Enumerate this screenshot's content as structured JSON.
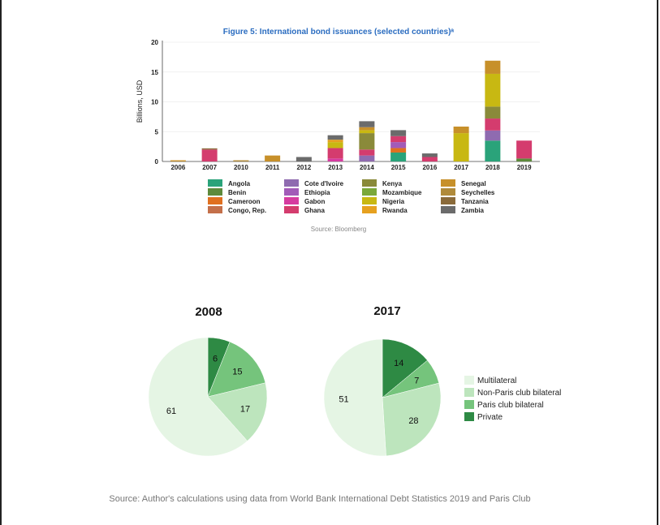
{
  "chart_data": [
    {
      "type": "bar",
      "stacked": true,
      "title": "Figure 5: International bond issuances (selected countries)ᵃ",
      "xlabel": "",
      "ylabel": "Billions, USD",
      "ylim": [
        0,
        20
      ],
      "yticks": [
        "0",
        "5",
        "10",
        "15",
        "20"
      ],
      "categories": [
        "2006",
        "2007",
        "2010",
        "2011",
        "2012",
        "2013",
        "2014",
        "2015",
        "2016",
        "2017",
        "2018",
        "2019"
      ],
      "series": [
        {
          "name": "Angola",
          "color": "#2aa37a",
          "values": [
            0,
            0,
            0,
            0,
            0,
            0,
            0,
            1.5,
            0,
            0,
            3.5,
            0
          ]
        },
        {
          "name": "Benin",
          "color": "#5d8a3c",
          "values": [
            0,
            0,
            0,
            0,
            0,
            0,
            0,
            0,
            0,
            0,
            0,
            0.5
          ]
        },
        {
          "name": "Cameroon",
          "color": "#e07020",
          "values": [
            0,
            0,
            0,
            0,
            0,
            0,
            0,
            0.75,
            0,
            0,
            0,
            0
          ]
        },
        {
          "name": "Congo, Rep.",
          "color": "#c4704a",
          "values": [
            0,
            0,
            0,
            0,
            0,
            0,
            0,
            0,
            0,
            0,
            0,
            0
          ]
        },
        {
          "name": "Cote d'Ivoire",
          "color": "#8f6bb0",
          "values": [
            0,
            0,
            0,
            0,
            0,
            0,
            1.0,
            0,
            0,
            0,
            1.7,
            0
          ]
        },
        {
          "name": "Ethiopia",
          "color": "#a25bb8",
          "values": [
            0,
            0,
            0,
            0,
            0,
            0,
            0,
            1.0,
            0,
            0,
            0,
            0
          ]
        },
        {
          "name": "Gabon",
          "color": "#d63ba0",
          "values": [
            0,
            0,
            0,
            0,
            0,
            0.5,
            0,
            0,
            0,
            0,
            0,
            0
          ]
        },
        {
          "name": "Ghana",
          "color": "#d43c6e",
          "values": [
            0,
            2.0,
            0,
            0,
            0,
            1.75,
            1.0,
            1.0,
            0.75,
            0,
            2.0,
            3.0
          ]
        },
        {
          "name": "Kenya",
          "color": "#8a8a3a",
          "values": [
            0,
            0,
            0,
            0,
            0,
            0,
            2.75,
            0,
            0,
            0,
            2.0,
            0
          ]
        },
        {
          "name": "Mozambique",
          "color": "#7aa83a",
          "values": [
            0,
            0,
            0,
            0,
            0,
            0,
            0,
            0,
            0,
            0,
            0,
            0
          ]
        },
        {
          "name": "Nigeria",
          "color": "#c8b812",
          "values": [
            0,
            0,
            0,
            0,
            0,
            1.0,
            0.5,
            0,
            0,
            4.75,
            5.5,
            0
          ]
        },
        {
          "name": "Rwanda",
          "color": "#e6a11f",
          "values": [
            0,
            0,
            0,
            0,
            0,
            0.4,
            0,
            0,
            0,
            0,
            0,
            0
          ]
        },
        {
          "name": "Senegal",
          "color": "#c7902a",
          "values": [
            0.2,
            0,
            0,
            1.0,
            0,
            0,
            0.5,
            0,
            0,
            1.1,
            2.2,
            0
          ]
        },
        {
          "name": "Seychelles",
          "color": "#b08a3a",
          "values": [
            0,
            0,
            0.2,
            0,
            0,
            0,
            0,
            0,
            0,
            0,
            0,
            0
          ]
        },
        {
          "name": "Tanzania",
          "color": "#8a6a3a",
          "values": [
            0,
            0.2,
            0,
            0,
            0,
            0,
            0,
            0,
            0,
            0,
            0,
            0
          ]
        },
        {
          "name": "Zambia",
          "color": "#6b6b6b",
          "values": [
            0,
            0,
            0,
            0,
            0.75,
            0.75,
            1.0,
            1.0,
            0.6,
            0,
            0,
            0
          ]
        }
      ],
      "source": "Source: Bloomberg"
    },
    {
      "type": "pie",
      "title": "2008",
      "slices": [
        {
          "name": "Private",
          "value": 6,
          "color": "#2e8a44"
        },
        {
          "name": "Paris club bilateral",
          "value": 15,
          "color": "#75c47c"
        },
        {
          "name": "Non-Paris club bilateral",
          "value": 17,
          "color": "#bde5bd"
        },
        {
          "name": "Multilateral",
          "value": 61,
          "color": "#e5f5e4"
        }
      ]
    },
    {
      "type": "pie",
      "title": "2017",
      "slices": [
        {
          "name": "Private",
          "value": 14,
          "color": "#2e8a44"
        },
        {
          "name": "Paris club bilateral",
          "value": 7,
          "color": "#75c47c"
        },
        {
          "name": "Non-Paris club bilateral",
          "value": 28,
          "color": "#bde5bd"
        },
        {
          "name": "Multilateral",
          "value": 51,
          "color": "#e5f5e4"
        }
      ]
    }
  ],
  "pie_legend": [
    {
      "name": "Multilateral",
      "color": "#e5f5e4"
    },
    {
      "name": "Non-Paris club bilateral",
      "color": "#bde5bd"
    },
    {
      "name": "Paris club bilateral",
      "color": "#75c47c"
    },
    {
      "name": "Private",
      "color": "#2e8a44"
    }
  ],
  "footer_source": "Source: Author's calculations using data from World Bank International Debt Statistics 2019 and Paris Club"
}
